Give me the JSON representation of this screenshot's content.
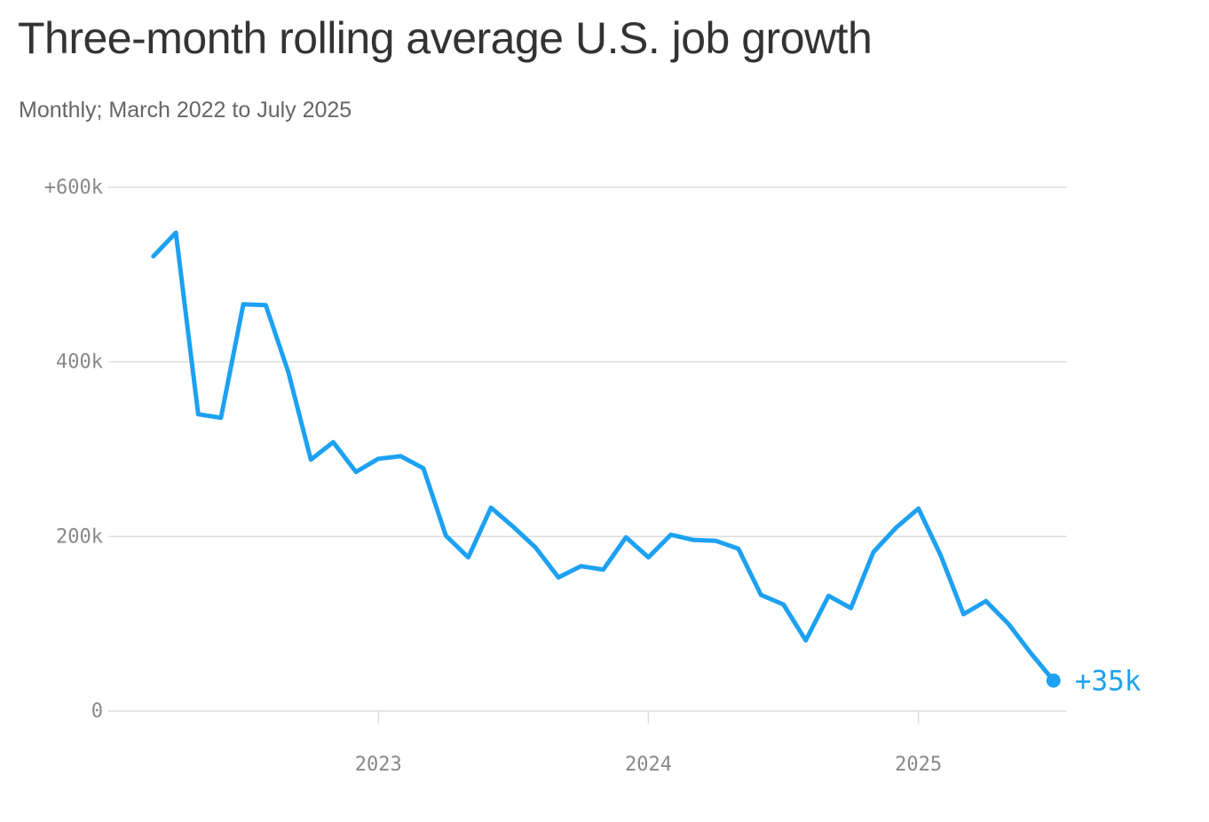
{
  "header": {
    "title": "Three-month rolling average U.S. job growth",
    "subtitle": "Monthly; March 2022 to July 2025"
  },
  "colors": {
    "line": "#1da1f2",
    "grid": "#dddddd",
    "axis_text": "#888888"
  },
  "chart_data": {
    "type": "line",
    "title": "Three-month rolling average U.S. job growth",
    "subtitle": "Monthly; March 2022 to July 2025",
    "xlabel": "",
    "ylabel": "",
    "ylim": [
      0,
      600000
    ],
    "xlim": [
      2022.0,
      2025.55
    ],
    "grid": true,
    "y_ticks": [
      {
        "value": 600000,
        "label": "+600k"
      },
      {
        "value": 400000,
        "label": "400k"
      },
      {
        "value": 200000,
        "label": "200k"
      },
      {
        "value": 0,
        "label": "0"
      }
    ],
    "x_ticks": [
      {
        "value": 2023,
        "label": "2023"
      },
      {
        "value": 2024,
        "label": "2024"
      },
      {
        "value": 2025,
        "label": "2025"
      }
    ],
    "series": [
      {
        "name": "Three-month rolling average",
        "x": [
          2022.167,
          2022.25,
          2022.333,
          2022.417,
          2022.5,
          2022.583,
          2022.667,
          2022.75,
          2022.833,
          2022.917,
          2023.0,
          2023.083,
          2023.167,
          2023.25,
          2023.333,
          2023.417,
          2023.5,
          2023.583,
          2023.667,
          2023.75,
          2023.833,
          2023.917,
          2024.0,
          2024.083,
          2024.167,
          2024.25,
          2024.333,
          2024.417,
          2024.5,
          2024.583,
          2024.667,
          2024.75,
          2024.833,
          2024.917,
          2025.0,
          2025.083,
          2025.167,
          2025.25,
          2025.333,
          2025.417,
          2025.5
        ],
        "values": [
          521000,
          548000,
          340000,
          336000,
          466000,
          465000,
          388000,
          288000,
          308000,
          274000,
          289000,
          292000,
          278000,
          201000,
          176000,
          233000,
          211000,
          187000,
          153000,
          166000,
          162000,
          199000,
          176000,
          202000,
          196000,
          195000,
          186000,
          133000,
          122000,
          81000,
          132000,
          118000,
          182000,
          210000,
          232000,
          178000,
          111000,
          126000,
          100000,
          66000,
          35000
        ]
      }
    ],
    "end_label": "+35k"
  }
}
